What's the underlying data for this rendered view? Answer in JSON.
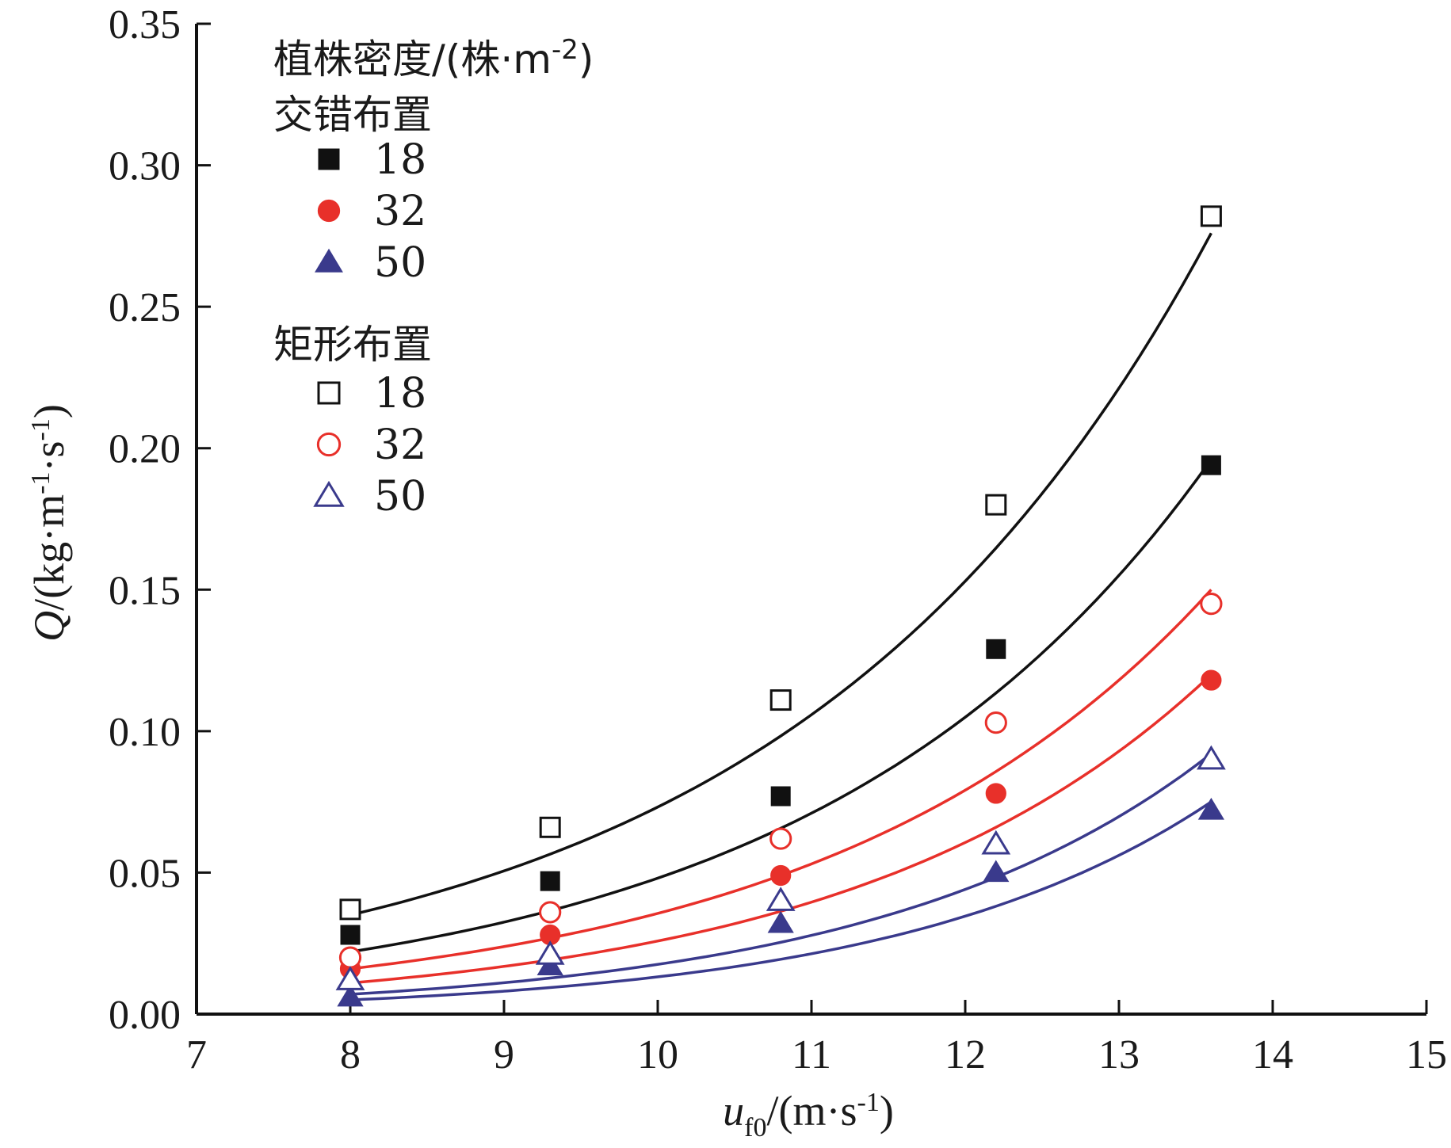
{
  "chart_data": {
    "type": "scatter",
    "xlabel": {
      "var": "u",
      "sub": "f0",
      "unit_pre": "/(m·s",
      "unit_sup": "-1",
      "unit_post": ")"
    },
    "ylabel": {
      "var": "Q",
      "unit_pre": "/(kg·m",
      "sup1": "-1",
      "mid": "·s",
      "sup2": "-1",
      "unit_post": ")"
    },
    "xlim": [
      7,
      15
    ],
    "ylim": [
      0,
      0.35
    ],
    "xticks": [
      7,
      8,
      9,
      10,
      11,
      12,
      13,
      14,
      15
    ],
    "yticks": [
      "0.00",
      "0.05",
      "0.10",
      "0.15",
      "0.20",
      "0.25",
      "0.30",
      "0.35"
    ],
    "grid": false,
    "legend_position": "top-left",
    "legend": {
      "title_pre": "植株密度/(株·m",
      "title_sup": "-2",
      "title_post": ")",
      "groups": [
        {
          "name": "交错布置",
          "entries": [
            "18",
            "32",
            "50"
          ]
        },
        {
          "name": "矩形布置",
          "entries": [
            "18",
            "32",
            "50"
          ]
        }
      ]
    },
    "x": [
      8.0,
      9.3,
      10.8,
      12.2,
      13.6
    ],
    "series": [
      {
        "name": "18",
        "group": "交错布置",
        "marker": "square",
        "filled": true,
        "color": "#111111",
        "values": [
          0.028,
          0.047,
          0.077,
          0.129,
          0.194
        ]
      },
      {
        "name": "32",
        "group": "交错布置",
        "marker": "circle",
        "filled": true,
        "color": "#e8302a",
        "values": [
          0.016,
          0.028,
          0.049,
          0.078,
          0.118
        ]
      },
      {
        "name": "50",
        "group": "交错布置",
        "marker": "triangle",
        "filled": true,
        "color": "#3a3a8c",
        "values": [
          0.006,
          0.017,
          0.032,
          0.05,
          0.072
        ]
      },
      {
        "name": "18",
        "group": "矩形布置",
        "marker": "square",
        "filled": false,
        "color": "#111111",
        "values": [
          0.037,
          0.066,
          0.111,
          0.18,
          0.282
        ]
      },
      {
        "name": "32",
        "group": "矩形布置",
        "marker": "circle",
        "filled": false,
        "color": "#e8302a",
        "values": [
          0.02,
          0.036,
          0.062,
          0.103,
          0.145
        ]
      },
      {
        "name": "50",
        "group": "矩形布置",
        "marker": "triangle",
        "filled": false,
        "color": "#3a3a8c",
        "values": [
          0.012,
          0.021,
          0.04,
          0.06,
          0.09
        ]
      }
    ],
    "fit_curves": [
      {
        "color": "#111111",
        "y_at_xmin": 0.035,
        "y_at_xmax": 0.276
      },
      {
        "color": "#111111",
        "y_at_xmin": 0.022,
        "y_at_xmax": 0.196
      },
      {
        "color": "#e8302a",
        "y_at_xmin": 0.016,
        "y_at_xmax": 0.15
      },
      {
        "color": "#e8302a",
        "y_at_xmin": 0.011,
        "y_at_xmax": 0.12
      },
      {
        "color": "#3a3a8c",
        "y_at_xmin": 0.007,
        "y_at_xmax": 0.092
      },
      {
        "color": "#3a3a8c",
        "y_at_xmin": 0.005,
        "y_at_xmax": 0.075
      }
    ],
    "fit_x_range": [
      8.0,
      13.6
    ]
  }
}
